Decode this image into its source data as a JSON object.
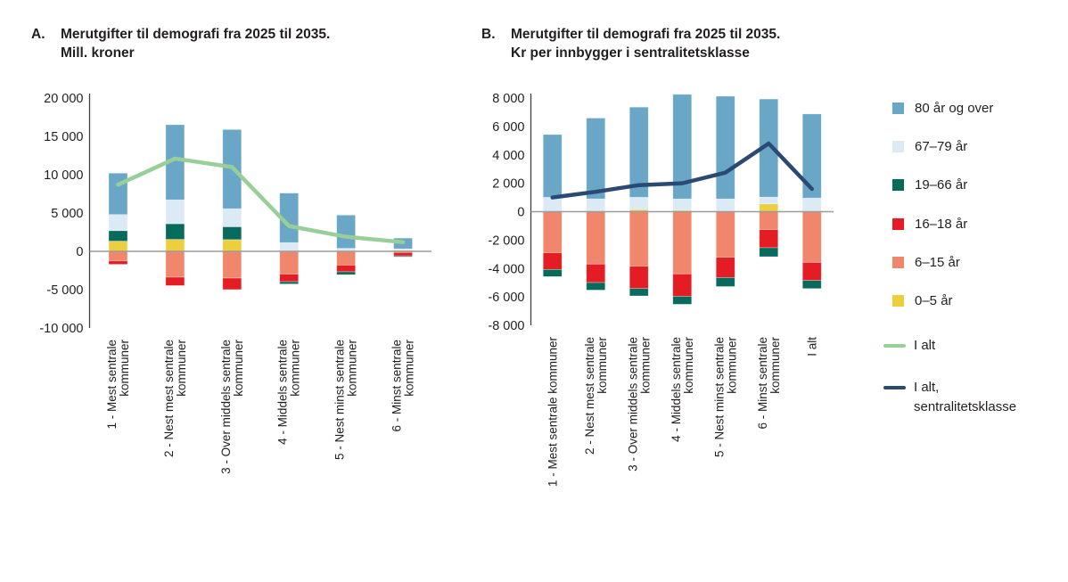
{
  "figure": {
    "background": "#ffffff"
  },
  "chart_data": [
    {
      "id": "A",
      "type": "bar",
      "subtype": "stacked-bars-with-total-line",
      "letter": "A.",
      "title": "Merutgifter til demografi fra 2025 til 2035.\nMill. kroner",
      "ylabel": "Mill. kroner",
      "ylim": [
        -10000,
        20000
      ],
      "yticks": [
        20000,
        15000,
        10000,
        5000,
        0,
        -5000,
        -10000
      ],
      "grid": "zero-line-only",
      "categories": [
        "1 - Mest sentrale\nkommuner",
        "2 - Nest mest sentrale\nkommuner",
        "3 - Over middels sentrale\nkommuner",
        "4 - Middels sentrale\nkommuner",
        "5 - Nest minst sentrale\nkommuner",
        "6 -  Minst sentrale\nkommuner"
      ],
      "series": [
        {
          "name": "0–5 år",
          "color": "#edce3d",
          "values": [
            1330,
            1560,
            1530,
            0,
            0,
            150
          ]
        },
        {
          "name": "6–15 år",
          "color": "#f0876c",
          "values": [
            -1250,
            -3370,
            -3490,
            -2970,
            -1800,
            -150
          ]
        },
        {
          "name": "16–18 år",
          "color": "#e41d25",
          "values": [
            -450,
            -1100,
            -1500,
            -990,
            -870,
            -450
          ]
        },
        {
          "name": "19–66 år",
          "color": "#066a5c",
          "values": [
            1370,
            2040,
            1680,
            -300,
            -380,
            -120
          ]
        },
        {
          "name": "67–79 år",
          "color": "#dceaf6",
          "values": [
            2100,
            3120,
            2350,
            1140,
            390,
            180
          ]
        },
        {
          "name": "80 år og over",
          "color": "#6aa6c6",
          "values": [
            5400,
            9800,
            10330,
            6460,
            4340,
            1400
          ]
        }
      ],
      "line": {
        "name": "I alt",
        "color": "#98cf98",
        "values": [
          8700,
          12100,
          11000,
          3300,
          1900,
          1200
        ]
      }
    },
    {
      "id": "B",
      "type": "bar",
      "subtype": "stacked-bars-with-total-line",
      "letter": "B.",
      "title": "Merutgifter til demografi fra 2025 til 2035.\nKr per innbygger  i sentralitetsklasse",
      "ylabel": "Kr per innbygger i sentralitetsklasse",
      "ylim": [
        -8000,
        8000
      ],
      "yticks": [
        8000,
        6000,
        4000,
        2000,
        0,
        -2000,
        -4000,
        -6000,
        -8000
      ],
      "grid": "zero-line-only",
      "categories": [
        "1 - Mest sentrale kommuner",
        "2 - Nest mest sentrale\nkommuner",
        "3 - Over middels sentrale\nkommuner",
        "4 - Middels sentrale\nkommuner",
        "5 - Nest minst sentrale\nkommuner",
        "6 -  Minst sentrale\nkommuner",
        "I alt"
      ],
      "series": [
        {
          "name": "0–5 år",
          "color": "#edce3d",
          "values": [
            0,
            0,
            150,
            100,
            0,
            550,
            0
          ]
        },
        {
          "name": "6–15 år",
          "color": "#f0876c",
          "values": [
            -2890,
            -3690,
            -3840,
            -4380,
            -3210,
            -1260,
            -3570
          ]
        },
        {
          "name": "16–18 år",
          "color": "#e41d25",
          "values": [
            -1180,
            -1300,
            -1570,
            -1580,
            -1430,
            -1280,
            -1270
          ]
        },
        {
          "name": "19–66 år",
          "color": "#066a5c",
          "values": [
            -500,
            -530,
            -520,
            -560,
            -630,
            -630,
            -570
          ]
        },
        {
          "name": "67–79 år",
          "color": "#dceaf6",
          "values": [
            1010,
            900,
            860,
            800,
            900,
            475,
            960
          ]
        },
        {
          "name": "80 år og over",
          "color": "#6aa6c6",
          "values": [
            4420,
            5690,
            6350,
            7360,
            7230,
            6905,
            5920
          ]
        }
      ],
      "line": {
        "name": "I alt, sentralitetsklasse",
        "color": "#2b4a73",
        "values": [
          1000,
          1400,
          1870,
          2000,
          2750,
          4800,
          1600
        ]
      }
    }
  ],
  "legend": {
    "items": [
      {
        "label": "80 år og over",
        "color": "#6aa6c6",
        "type": "box"
      },
      {
        "label": "67–79 år",
        "color": "#dceaf6",
        "type": "box"
      },
      {
        "label": "19–66 år",
        "color": "#066a5c",
        "type": "box"
      },
      {
        "label": "16–18 år",
        "color": "#e41d25",
        "type": "box"
      },
      {
        "label": "6–15 år",
        "color": "#f0876c",
        "type": "box"
      },
      {
        "label": "0–5 år",
        "color": "#edce3d",
        "type": "box"
      },
      {
        "label": "I alt",
        "color": "#98cf98",
        "type": "line"
      },
      {
        "label": "I alt,\nsentralitetsklasse",
        "color": "#2b4a73",
        "type": "line"
      }
    ]
  },
  "style": {
    "axis_color": "#404040",
    "zero_line_color": "#9c9c9c",
    "text_color": "#221e1f"
  }
}
